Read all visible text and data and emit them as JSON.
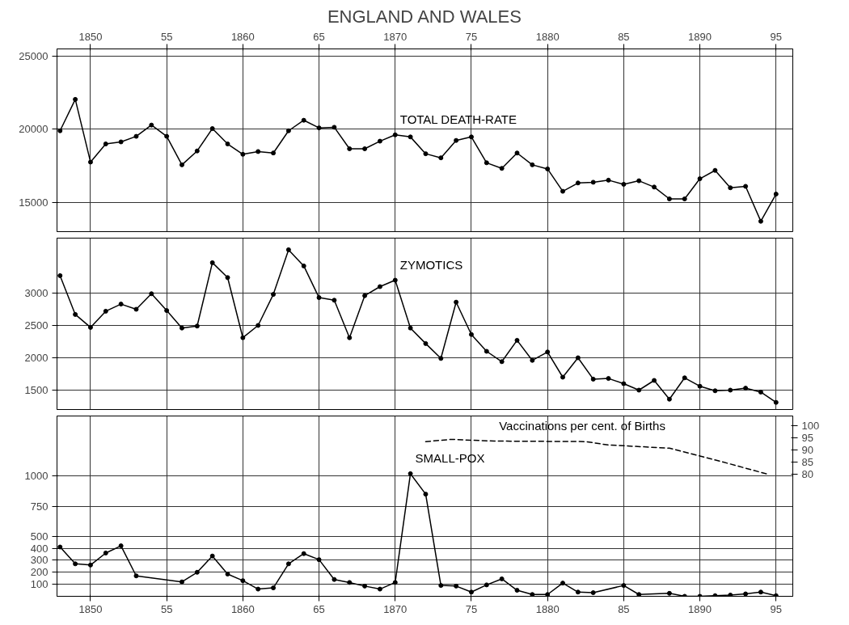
{
  "chart_data": [
    {
      "type": "line",
      "title": "ENGLAND AND WALES",
      "x": [
        1848,
        1849,
        1850,
        1851,
        1852,
        1853,
        1854,
        1855,
        1856,
        1857,
        1858,
        1859,
        1860,
        1861,
        1862,
        1863,
        1864,
        1865,
        1866,
        1867,
        1868,
        1869,
        1870,
        1871,
        1872,
        1873,
        1874,
        1875,
        1876,
        1877,
        1878,
        1879,
        1880,
        1881,
        1882,
        1883,
        1884,
        1885,
        1886,
        1887,
        1888,
        1889,
        1890,
        1891,
        1892,
        1893,
        1894,
        1895
      ],
      "xlim": [
        1847.8,
        1896.1
      ],
      "xticks": [
        {
          "value": 1850,
          "label": "1850"
        },
        {
          "value": 1855,
          "label": "55"
        },
        {
          "value": 1860,
          "label": "1860"
        },
        {
          "value": 1865,
          "label": "65"
        },
        {
          "value": 1870,
          "label": "1870"
        },
        {
          "value": 1875,
          "label": "75"
        },
        {
          "value": 1880,
          "label": "1880"
        },
        {
          "value": 1885,
          "label": "85"
        },
        {
          "value": 1890,
          "label": "1890"
        },
        {
          "value": 1895,
          "label": "95"
        }
      ],
      "ylim": [
        13000,
        25500
      ],
      "yticks": [
        15000,
        20000,
        25000
      ],
      "grid": true,
      "marker": "circle",
      "series": [
        {
          "name": "TOTAL DEATH-RATE",
          "color": "#000000",
          "values": [
            19900,
            22050,
            17760,
            19000,
            19140,
            19520,
            20290,
            19520,
            17570,
            18520,
            20050,
            19000,
            18290,
            18480,
            18380,
            19900,
            20620,
            20100,
            20140,
            18670,
            18670,
            19190,
            19620,
            19480,
            18330,
            18050,
            19240,
            19480,
            17710,
            17330,
            18380,
            17570,
            17290,
            15760,
            16330,
            16380,
            16520,
            16240,
            16480,
            16050,
            15240,
            15240,
            16620,
            17190,
            16000,
            16100,
            13710,
            15570
          ]
        }
      ]
    },
    {
      "type": "line",
      "x": [
        1848,
        1849,
        1850,
        1851,
        1852,
        1853,
        1854,
        1855,
        1856,
        1857,
        1858,
        1859,
        1860,
        1861,
        1862,
        1863,
        1864,
        1865,
        1866,
        1867,
        1868,
        1869,
        1870,
        1871,
        1872,
        1873,
        1874,
        1875,
        1876,
        1877,
        1878,
        1879,
        1880,
        1881,
        1882,
        1883,
        1884,
        1885,
        1886,
        1887,
        1888,
        1889,
        1890,
        1891,
        1892,
        1893,
        1894,
        1895
      ],
      "xlim": [
        1847.8,
        1896.1
      ],
      "xticks": [
        {
          "value": 1850,
          "label": null
        },
        {
          "value": 1855,
          "label": null
        },
        {
          "value": 1860,
          "label": null
        },
        {
          "value": 1865,
          "label": null
        },
        {
          "value": 1870,
          "label": null
        },
        {
          "value": 1875,
          "label": null
        },
        {
          "value": 1880,
          "label": null
        },
        {
          "value": 1885,
          "label": null
        },
        {
          "value": 1890,
          "label": null
        },
        {
          "value": 1895,
          "label": null
        }
      ],
      "ylim": [
        1200,
        3850
      ],
      "yticks": [
        1500,
        2000,
        2500,
        3000
      ],
      "tick_labels": "y",
      "grid": true,
      "marker": "circle",
      "series": [
        {
          "name": "ZYMOTICS",
          "color": "#000000",
          "values": [
            3270,
            2670,
            2470,
            2720,
            2830,
            2750,
            2990,
            2730,
            2460,
            2490,
            3470,
            3240,
            2310,
            2500,
            2980,
            3670,
            3420,
            2930,
            2890,
            2310,
            2960,
            3100,
            3200,
            2460,
            2220,
            1990,
            2860,
            2360,
            2100,
            1940,
            2270,
            1960,
            2090,
            1700,
            2000,
            1670,
            1680,
            1600,
            1500,
            1650,
            1360,
            1690,
            1560,
            1490,
            1500,
            1530,
            1470,
            1310
          ]
        }
      ]
    },
    {
      "type": "line",
      "xlim": [
        1847.8,
        1896.1
      ],
      "xticks": [
        {
          "value": 1850,
          "label": "1850"
        },
        {
          "value": 1855,
          "label": "55"
        },
        {
          "value": 1860,
          "label": "1860"
        },
        {
          "value": 1865,
          "label": "65"
        },
        {
          "value": 1870,
          "label": "1870"
        },
        {
          "value": 1875,
          "label": "75"
        },
        {
          "value": 1880,
          "label": "1880"
        },
        {
          "value": 1885,
          "label": "85"
        },
        {
          "value": 1890,
          "label": "1890"
        },
        {
          "value": 1895,
          "label": "95"
        }
      ],
      "ylim": [
        0,
        1500
      ],
      "yticks": [
        100,
        200,
        300,
        400,
        500,
        750,
        1000
      ],
      "y2lim": [
        30,
        104
      ],
      "y2ticks": [
        80,
        85,
        90,
        95,
        100
      ],
      "grid": true,
      "marker": "circle",
      "series": [
        {
          "name": "SMALL-POX",
          "color": "#000000",
          "x": [
            1848,
            1849,
            1850,
            1851,
            1852,
            1853,
            1856,
            1857,
            1858,
            1859,
            1860,
            1861,
            1862,
            1863,
            1864,
            1865,
            1866,
            1867,
            1868,
            1869,
            1870,
            1871,
            1872,
            1873,
            1874,
            1875,
            1876,
            1877,
            1878,
            1879,
            1880,
            1881,
            1882,
            1883,
            1885,
            1886,
            1888,
            1889,
            1890,
            1891,
            1892,
            1893,
            1894,
            1895
          ],
          "values": [
            410,
            270,
            260,
            360,
            420,
            170,
            120,
            200,
            335,
            185,
            130,
            60,
            70,
            270,
            355,
            305,
            140,
            115,
            85,
            60,
            115,
            1020,
            850,
            90,
            85,
            35,
            95,
            145,
            50,
            15,
            15,
            110,
            35,
            30,
            90,
            15,
            25,
            0,
            0,
            5,
            10,
            20,
            35,
            5
          ]
        },
        {
          "name": "Vaccinations per cent. of Births",
          "color": "#000000",
          "axis": "y2",
          "marker": "none",
          "line_style": "dashed",
          "x": [
            1872,
            1873.7,
            1876.5,
            1882.5,
            1884,
            1888,
            1890,
            1892,
            1894.4
          ],
          "values": [
            93.5,
            94.4,
            93.7,
            93.5,
            92.1,
            90.8,
            87.6,
            84.3,
            80.2
          ]
        }
      ]
    }
  ]
}
